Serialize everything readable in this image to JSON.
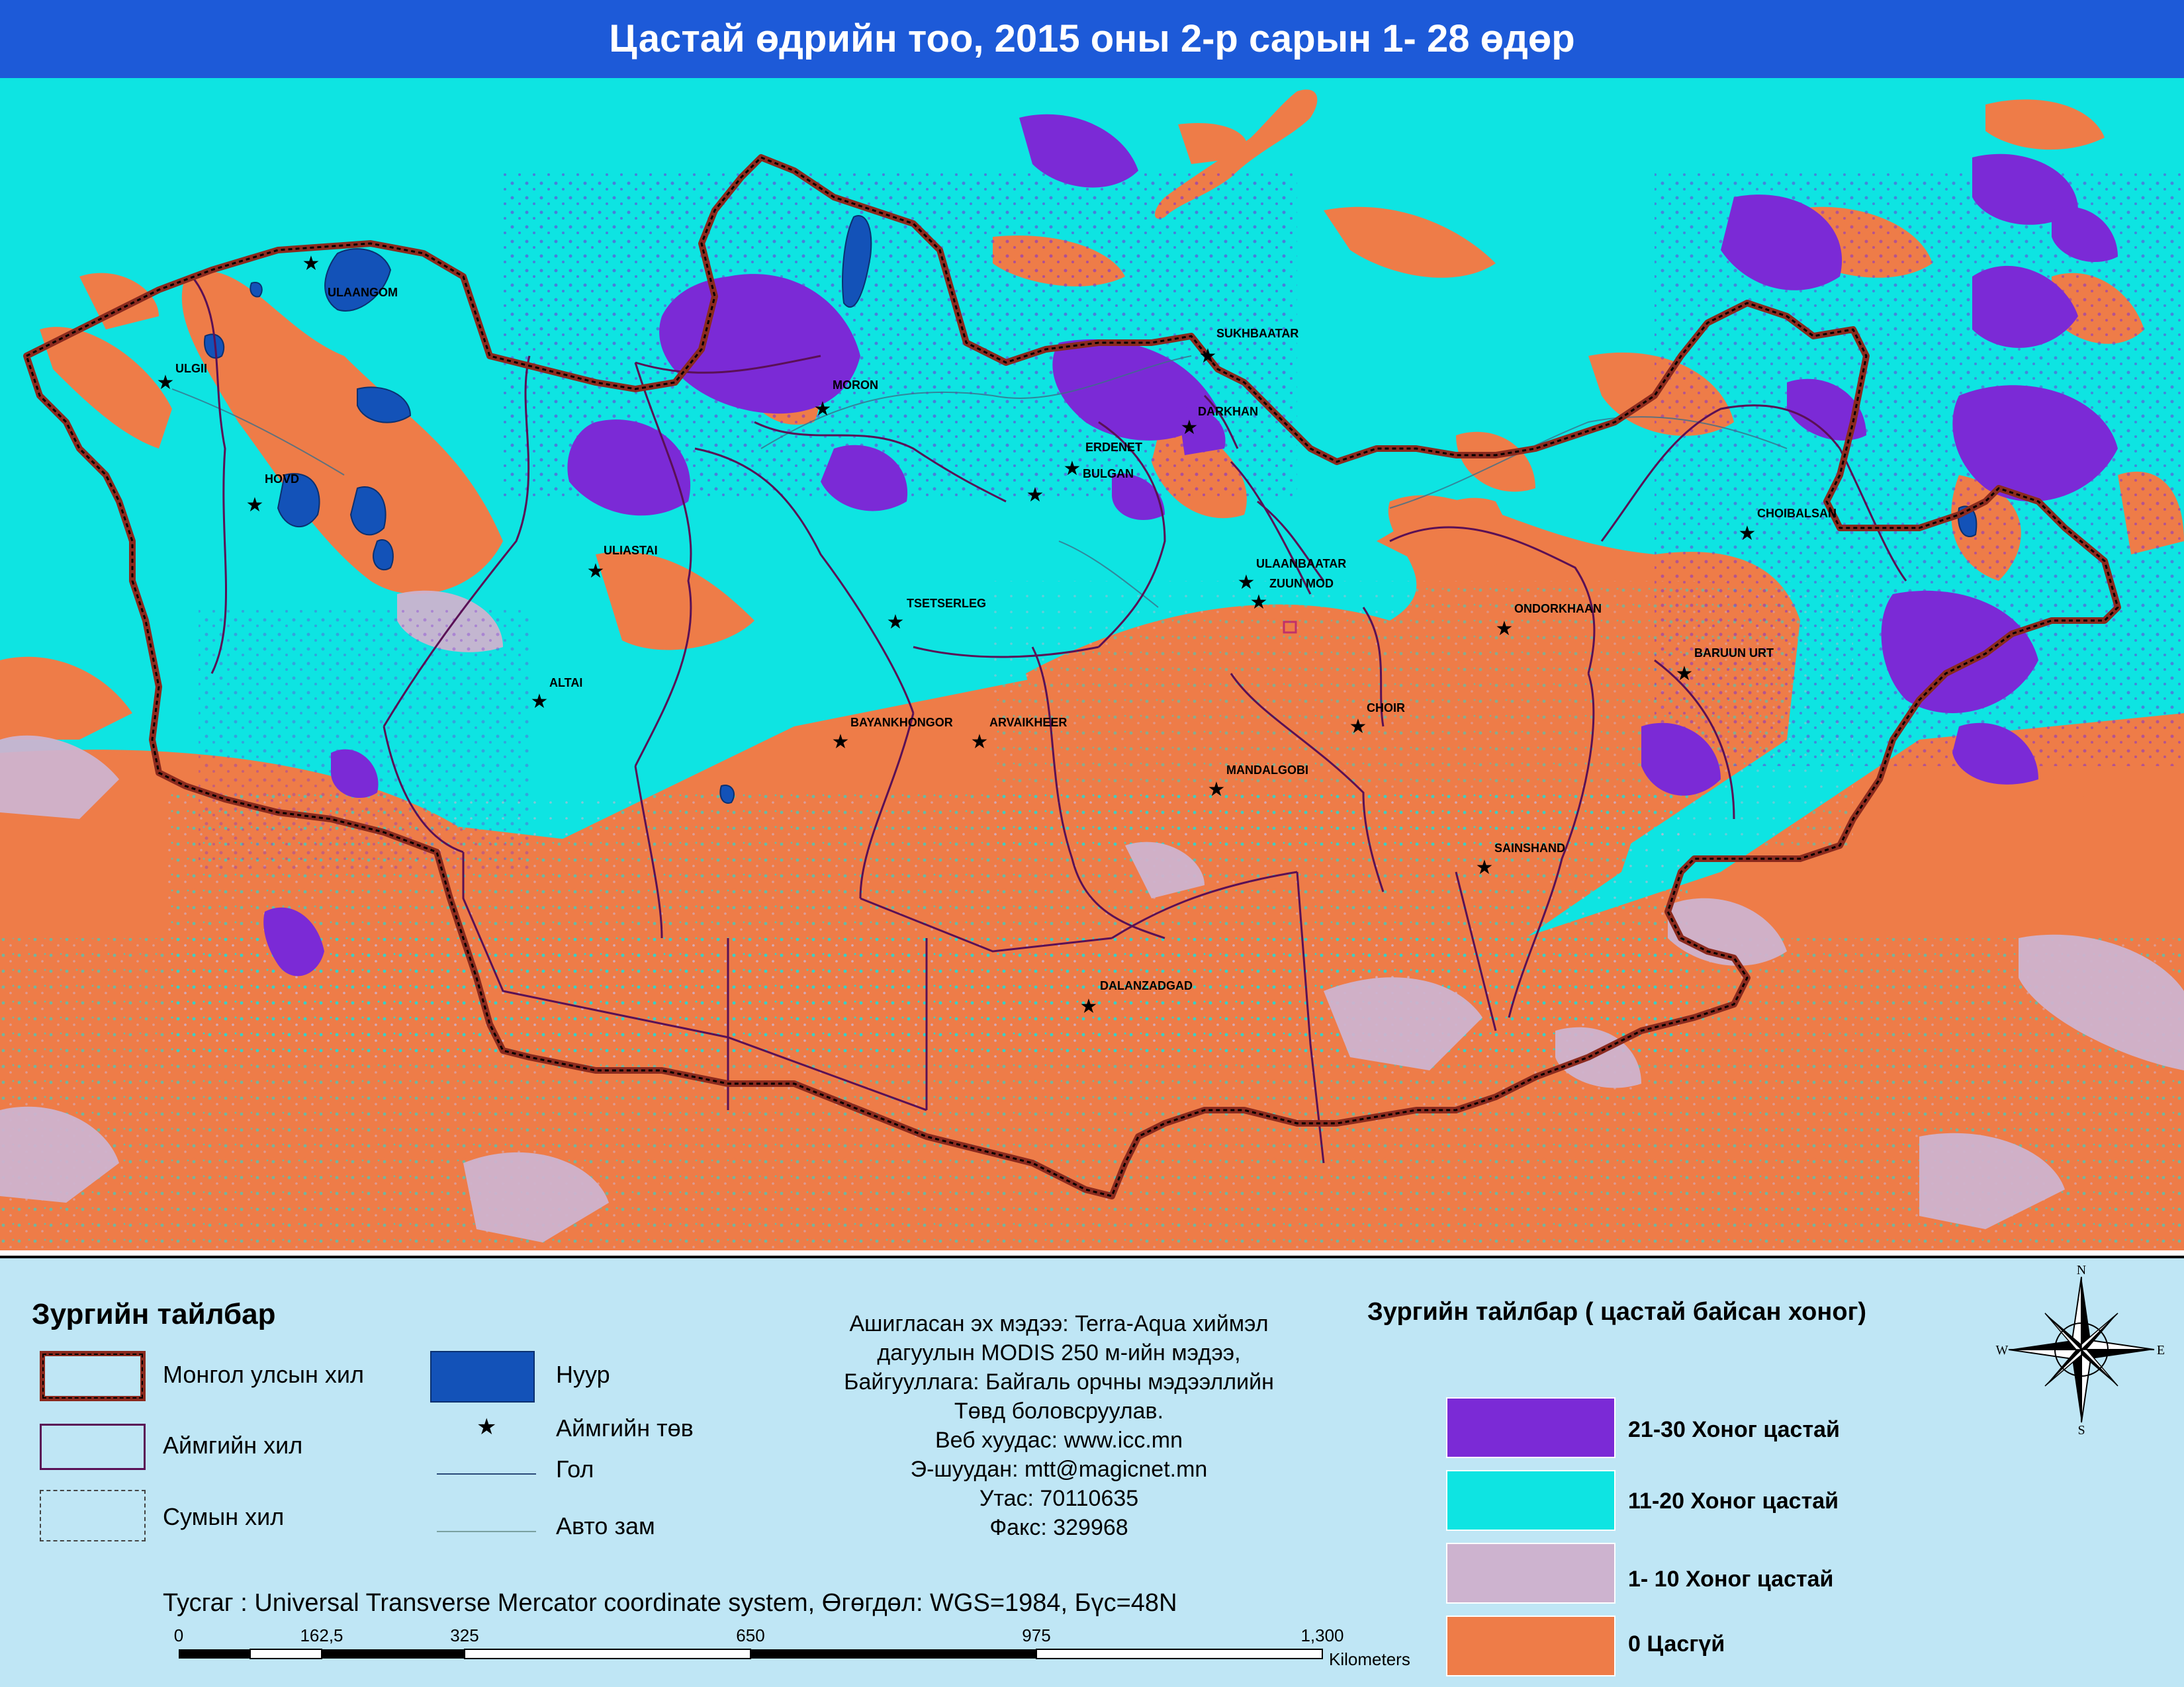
{
  "title": "Цастай өдрийн тоо, 2015 оны 2-р сарын 1- 28 өдөр",
  "colors": {
    "days_21_30": "#7b2ad6",
    "days_11_20": "#0ee4e2",
    "days_1_10": "#cdb3cf",
    "days_0": "#ee7c48",
    "lake": "#1352b8",
    "national_border": "#8b2a1e",
    "aimag_border": "#5a1055",
    "legend_background": "#bfe6f5",
    "title_background": "#1d5ad8"
  },
  "cities": [
    {
      "name": "ULAANGOM"
    },
    {
      "name": "ULGII"
    },
    {
      "name": "HOVD"
    },
    {
      "name": "MORON"
    },
    {
      "name": "SUKHBAATAR"
    },
    {
      "name": "DARKHAN"
    },
    {
      "name": "ERDENET"
    },
    {
      "name": "BULGAN"
    },
    {
      "name": "ULIASTAI"
    },
    {
      "name": "TSETSERLEG"
    },
    {
      "name": "ULAANBAATAR"
    },
    {
      "name": "ZUUN MOD"
    },
    {
      "name": "CHOIBALSAN"
    },
    {
      "name": "ONDORKHAAN"
    },
    {
      "name": "BARUUN URT"
    },
    {
      "name": "ALTAI"
    },
    {
      "name": "BAYANKHONGOR"
    },
    {
      "name": "ARVAIKHEER"
    },
    {
      "name": "CHOIR"
    },
    {
      "name": "MANDALGOBI"
    },
    {
      "name": "SAINSHAND"
    },
    {
      "name": "DALANZADGAD"
    }
  ],
  "legend_left": {
    "title": "Зургийн тайлбар",
    "items": {
      "national_border": "Монгол улсын хил",
      "aimag_border": "Аймгийн хил",
      "soum_border": "Сумын хил",
      "lake": "Нуур",
      "aimag_center": "Аймгийн төв",
      "river": "Гол",
      "road": "Авто зам"
    }
  },
  "info": {
    "lines": [
      "Ашигласан эх мэдээ: Terra-Aqua хиймэл",
      "дагуулын MODIS 250 м-ийн мэдээ,",
      "Байгууллага: Байгаль орчны мэдээллийн",
      "Төвд боловсруулав.",
      "Веб хуудас: www.icc.mn",
      "Э-шуудан: mtt@magicnet.mn",
      "Утас: 70110635",
      "Факс: 329968"
    ]
  },
  "projection": "Тусгаг : Universal Transverse Mercator coordinate system, Өгөгдөл: WGS=1984, Бүс=48N",
  "scale": {
    "ticks": [
      "0",
      "162,5",
      "325",
      "650",
      "975",
      "1,300"
    ],
    "unit": "Kilometers"
  },
  "legend_right": {
    "title": "Зургийн тайлбар ( цастай байсан хоног)",
    "classes": [
      {
        "label": "21-30 Хоног цастай",
        "color": "#7b2ad6"
      },
      {
        "label": "11-20 Хоног цастай",
        "color": "#0ee4e2"
      },
      {
        "label": "1- 10 Хоног цастай",
        "color": "#cdb3cf"
      },
      {
        "label": "0 Цасгүй",
        "color": "#ee7c48"
      }
    ]
  },
  "compass": {
    "n": "N",
    "s": "S",
    "e": "E",
    "w": "W"
  }
}
